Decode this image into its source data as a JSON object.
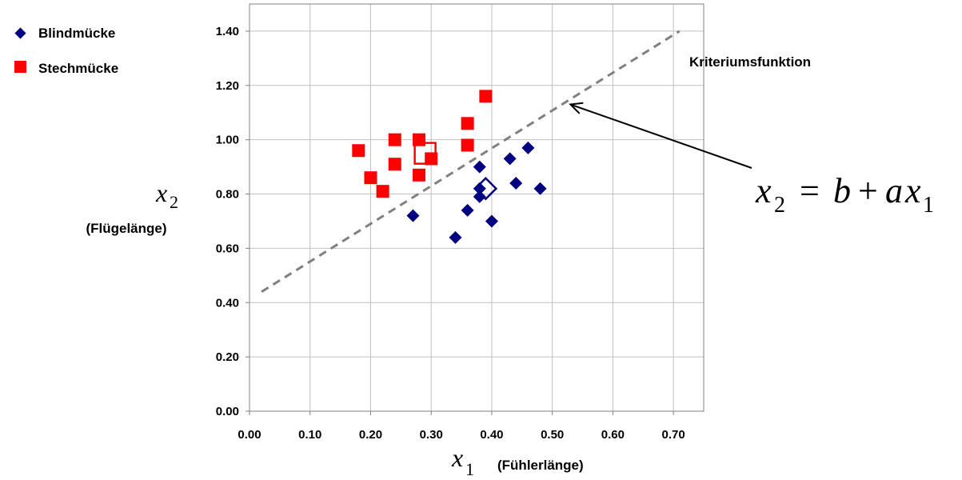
{
  "chart_data": {
    "type": "scatter",
    "xlim": [
      0,
      0.75
    ],
    "ylim": [
      0,
      1.5
    ],
    "x_ticks": [
      "0.00",
      "0.10",
      "0.20",
      "0.30",
      "0.40",
      "0.50",
      "0.60",
      "0.70"
    ],
    "y_ticks": [
      "0.00",
      "0.20",
      "0.40",
      "0.60",
      "0.80",
      "1.00",
      "1.20",
      "1.40"
    ],
    "grid": true,
    "legend_position": "top-left",
    "xlabel": "(Fühlerlänge)",
    "xlabel_symbol": "x",
    "xlabel_subscript": "1",
    "ylabel": "(Flügelänge)",
    "ylabel_symbol": "x",
    "ylabel_subscript": "2",
    "series": [
      {
        "name": "Blindmücke",
        "marker": "diamond",
        "color": "#000080",
        "points": [
          {
            "x": 0.27,
            "y": 0.72
          },
          {
            "x": 0.34,
            "y": 0.64
          },
          {
            "x": 0.36,
            "y": 0.74
          },
          {
            "x": 0.38,
            "y": 0.9
          },
          {
            "x": 0.38,
            "y": 0.82
          },
          {
            "x": 0.38,
            "y": 0.79
          },
          {
            "x": 0.4,
            "y": 0.7
          },
          {
            "x": 0.43,
            "y": 0.93
          },
          {
            "x": 0.44,
            "y": 0.84
          },
          {
            "x": 0.46,
            "y": 0.97
          },
          {
            "x": 0.48,
            "y": 0.82
          }
        ],
        "mean": {
          "x": 0.39,
          "y": 0.82
        }
      },
      {
        "name": "Stechmücke",
        "marker": "square",
        "color": "#ff0000",
        "points": [
          {
            "x": 0.18,
            "y": 0.96
          },
          {
            "x": 0.2,
            "y": 0.86
          },
          {
            "x": 0.22,
            "y": 0.81
          },
          {
            "x": 0.24,
            "y": 1.0
          },
          {
            "x": 0.24,
            "y": 0.91
          },
          {
            "x": 0.28,
            "y": 1.0
          },
          {
            "x": 0.28,
            "y": 0.87
          },
          {
            "x": 0.3,
            "y": 0.93
          },
          {
            "x": 0.36,
            "y": 1.06
          },
          {
            "x": 0.36,
            "y": 0.98
          },
          {
            "x": 0.39,
            "y": 1.16
          }
        ],
        "mean": {
          "x": 0.29,
          "y": 0.95
        }
      }
    ],
    "criterion_line": {
      "label": "Kriteriumsfunktion",
      "color": "#808080",
      "from": {
        "x": 0.02,
        "y": 0.44
      },
      "to": {
        "x": 0.71,
        "y": 1.4
      },
      "arrow_target": {
        "x": 0.53,
        "y": 1.13
      }
    },
    "equation": {
      "lhs": "x",
      "lhs_sub": "2",
      "equals": "=",
      "b": "b",
      "plus": "+",
      "a": "a",
      "x": "x",
      "x_sub": "1"
    }
  }
}
